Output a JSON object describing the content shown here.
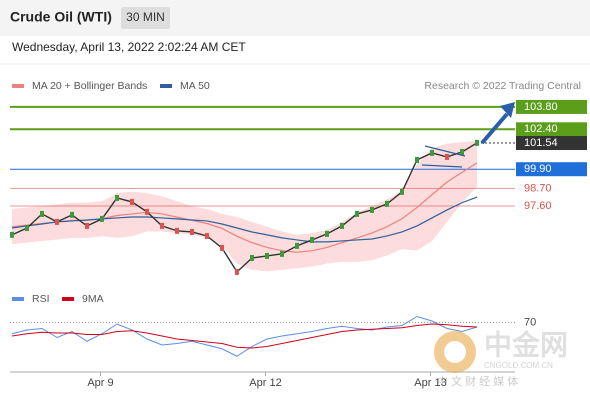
{
  "header": {
    "title": "Crude Oil (WTI)",
    "timeframe": "30 MIN",
    "date": "Wednesday, April 13, 2022 2:02:24 AM CET",
    "credit": "Research © 2022 Trading Central"
  },
  "watermark": {
    "brand": "中金网",
    "site": "CNGOLD.COM.CN",
    "slogan": "中 文 财 经 媒 体"
  },
  "chart_data": [
    {
      "type": "line",
      "xlim": [
        0,
        31
      ],
      "ylim": [
        92.65,
        104.86
      ],
      "xticks": [
        {
          "value": 5.9,
          "label": "Apr 9"
        },
        {
          "value": 16.9,
          "label": "Apr 12"
        },
        {
          "value": 27.9,
          "label": "Apr 13"
        }
      ],
      "color": "#333333",
      "values": [
        95.79,
        96.22,
        97.1,
        96.6,
        97.04,
        96.35,
        96.79,
        98.1,
        97.85,
        97.23,
        96.35,
        96.04,
        95.97,
        95.72,
        94.97,
        93.47,
        94.34,
        94.47,
        94.6,
        95.1,
        95.47,
        95.85,
        96.35,
        97.1,
        97.35,
        97.73,
        98.48,
        100.48,
        100.92,
        100.67,
        100.98,
        101.55
      ],
      "bollinger_upper": [
        97.4,
        97.5,
        97.6,
        97.7,
        97.8,
        97.8,
        97.9,
        98.4,
        98.5,
        98.4,
        98.2,
        97.9,
        97.6,
        97.4,
        97.1,
        96.9,
        96.6,
        96.3,
        96.0,
        95.8,
        95.9,
        96.1,
        96.6,
        97.2,
        97.6,
        98.0,
        98.6,
        100.2,
        101.2,
        101.5,
        101.6,
        101.7
      ],
      "bollinger_lower": [
        95.2,
        95.3,
        95.4,
        95.5,
        95.6,
        95.6,
        95.7,
        95.6,
        95.7,
        96.0,
        96.0,
        95.9,
        95.8,
        95.6,
        95.1,
        94.0,
        93.6,
        93.5,
        93.6,
        93.7,
        93.8,
        94.0,
        94.1,
        94.1,
        94.2,
        94.5,
        94.9,
        94.8,
        95.4,
        96.6,
        97.8,
        98.8
      ],
      "band_color": "#fbd3d3",
      "series": [
        {
          "name": "MA 20 + Bollinger Bands",
          "color": "#f08080",
          "values": [
            96.3,
            96.4,
            96.5,
            96.6,
            96.7,
            96.7,
            96.8,
            97.0,
            97.1,
            97.2,
            97.1,
            96.9,
            96.7,
            96.5,
            96.2,
            95.7,
            95.3,
            95.0,
            94.8,
            94.7,
            94.8,
            95.0,
            95.3,
            95.6,
            95.9,
            96.3,
            96.8,
            97.5,
            98.3,
            99.1,
            99.7,
            100.3
          ]
        },
        {
          "name": "MA 50",
          "color": "#2f5f9e",
          "values": [
            96.22,
            96.35,
            96.47,
            96.6,
            96.66,
            96.72,
            96.79,
            96.85,
            96.91,
            96.91,
            96.85,
            96.79,
            96.72,
            96.66,
            96.47,
            96.22,
            95.97,
            95.79,
            95.6,
            95.47,
            95.35,
            95.35,
            95.41,
            95.47,
            95.53,
            95.72,
            95.97,
            96.35,
            96.85,
            97.35,
            97.8,
            98.16
          ]
        }
      ],
      "levels": [
        {
          "value": 103.8,
          "label": "103.80",
          "color": "#5a9e1a",
          "style": "target"
        },
        {
          "value": 102.4,
          "label": "102.40",
          "color": "#5a9e1a",
          "style": "target"
        },
        {
          "value": 101.54,
          "label": "101.54",
          "color": "#333333",
          "style": "current"
        },
        {
          "value": 99.9,
          "label": "99.90",
          "color": "#1e6fd9",
          "style": "pivot"
        },
        {
          "value": 98.7,
          "label": "98.70",
          "color": "#d9534f",
          "style": "support"
        },
        {
          "value": 97.6,
          "label": "97.60",
          "color": "#d9534f",
          "style": "support"
        }
      ]
    },
    {
      "type": "line",
      "xlim": [
        0,
        31
      ],
      "ylim": [
        0,
        100
      ],
      "yticks": [
        70
      ],
      "series": [
        {
          "name": "RSI",
          "color": "#5b8ee6",
          "values": [
            55,
            60,
            62,
            50,
            58,
            45,
            55,
            68,
            60,
            48,
            40,
            42,
            45,
            40,
            35,
            25,
            38,
            48,
            52,
            55,
            58,
            62,
            65,
            62,
            60,
            64,
            66,
            78,
            72,
            62,
            58,
            64
          ]
        },
        {
          "name": "9MA",
          "color": "#d0021b",
          "values": [
            52,
            55,
            57,
            56,
            56,
            54,
            54,
            58,
            59,
            56,
            52,
            48,
            46,
            44,
            42,
            37,
            36,
            38,
            42,
            46,
            50,
            54,
            58,
            60,
            61,
            62,
            63,
            66,
            68,
            67,
            65,
            64
          ]
        }
      ]
    }
  ]
}
